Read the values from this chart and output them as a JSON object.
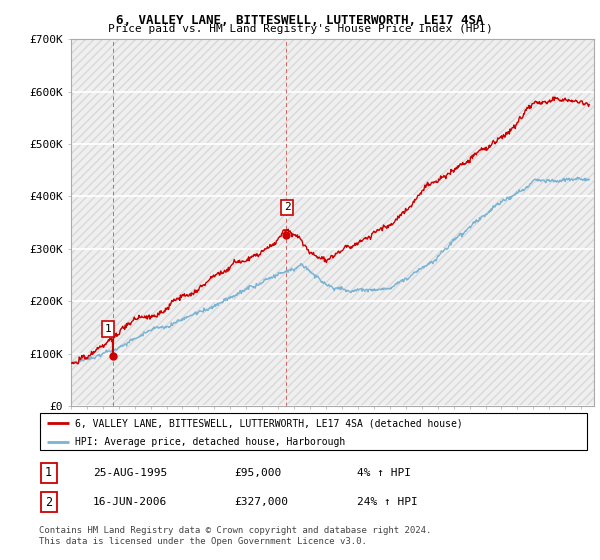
{
  "title": "6, VALLEY LANE, BITTESWELL, LUTTERWORTH, LE17 4SA",
  "subtitle": "Price paid vs. HM Land Registry's House Price Index (HPI)",
  "ylim": [
    0,
    700000
  ],
  "xlim_start": 1993.0,
  "xlim_end": 2025.8,
  "sale1_x": 1995.65,
  "sale1_y": 95000,
  "sale1_label": "1",
  "sale2_x": 2006.46,
  "sale2_y": 327000,
  "sale2_label": "2",
  "legend_line1": "6, VALLEY LANE, BITTESWELL, LUTTERWORTH, LE17 4SA (detached house)",
  "legend_line2": "HPI: Average price, detached house, Harborough",
  "table_row1": [
    "1",
    "25-AUG-1995",
    "£95,000",
    "4% ↑ HPI"
  ],
  "table_row2": [
    "2",
    "16-JUN-2006",
    "£327,000",
    "24% ↑ HPI"
  ],
  "footer": "Contains HM Land Registry data © Crown copyright and database right 2024.\nThis data is licensed under the Open Government Licence v3.0.",
  "hpi_color": "#7ab3d4",
  "price_color": "#cc0000",
  "dashed_line_color": "#cc0000"
}
